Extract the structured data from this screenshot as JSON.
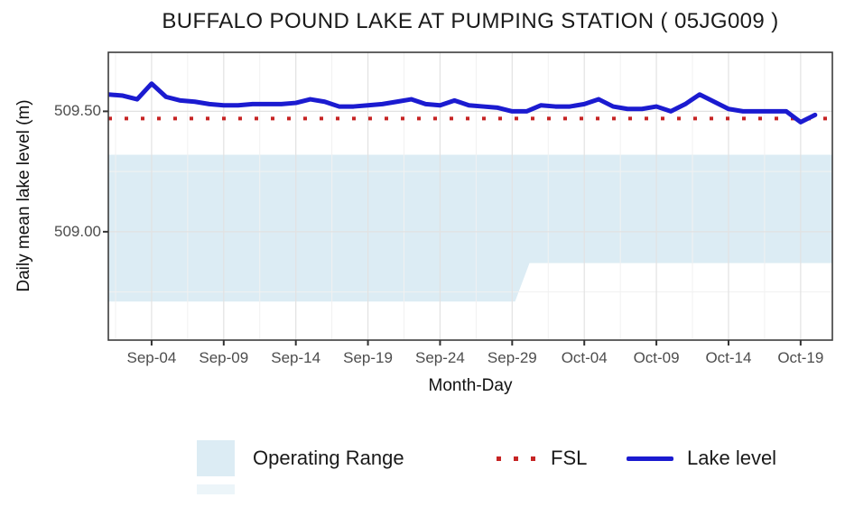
{
  "title": "BUFFALO POUND LAKE AT PUMPING STATION ( 05JG009 )",
  "colors": {
    "lake_level": "#1b1bd0",
    "fsl": "#c62424",
    "operating_range": "#dcecf4",
    "grid_major": "#e2e2e2",
    "grid_minor": "#f1f1f1",
    "panel_border": "#3c3c3c",
    "tick_mark": "#333333"
  },
  "legend": {
    "operating_range_label": "Operating Range",
    "fsl_label": "FSL",
    "lake_level_label": "Lake level"
  },
  "chart_data": {
    "type": "line",
    "title": "BUFFALO POUND LAKE AT PUMPING STATION ( 05JG009 )",
    "xlabel": "Month-Day",
    "ylabel": "Daily mean lake level (m)",
    "grid": true,
    "legend_position": "bottom",
    "xlim_days": [
      0,
      50.2
    ],
    "ylim": [
      508.55,
      509.745
    ],
    "x_tick_labels": [
      "Sep-04",
      "Sep-09",
      "Sep-14",
      "Sep-19",
      "Sep-24",
      "Sep-29",
      "Oct-04",
      "Oct-09",
      "Oct-14",
      "Oct-19"
    ],
    "x_tick_days": [
      3,
      8,
      13,
      18,
      23,
      28,
      33,
      38,
      43,
      48
    ],
    "x_minor_days": [
      0.5,
      5.5,
      10.5,
      15.5,
      20.5,
      25.5,
      30.5,
      35.5,
      40.5,
      45.5
    ],
    "y_ticks": [
      {
        "value": 509.5,
        "label": "509.50"
      },
      {
        "value": 509.0,
        "label": "509.00"
      }
    ],
    "y_minor": [
      509.25,
      508.75
    ],
    "fsl_value": 509.47,
    "operating_range": {
      "top": 509.32,
      "bottom_profile": [
        {
          "day": 0,
          "level": 508.71
        },
        {
          "day": 28.2,
          "level": 508.71
        },
        {
          "day": 29.2,
          "level": 508.87
        },
        {
          "day": 50.2,
          "level": 508.87
        }
      ]
    },
    "series": [
      {
        "name": "Lake level",
        "dates": [
          "Sep-01",
          "Sep-02",
          "Sep-03",
          "Sep-04",
          "Sep-05",
          "Sep-06",
          "Sep-07",
          "Sep-08",
          "Sep-09",
          "Sep-10",
          "Sep-11",
          "Sep-12",
          "Sep-13",
          "Sep-14",
          "Sep-15",
          "Sep-16",
          "Sep-17",
          "Sep-18",
          "Sep-19",
          "Sep-20",
          "Sep-21",
          "Sep-22",
          "Sep-23",
          "Sep-24",
          "Sep-25",
          "Sep-26",
          "Sep-27",
          "Sep-28",
          "Sep-29",
          "Sep-30",
          "Oct-01",
          "Oct-02",
          "Oct-03",
          "Oct-04",
          "Oct-05",
          "Oct-06",
          "Oct-07",
          "Oct-08",
          "Oct-09",
          "Oct-10",
          "Oct-11",
          "Oct-12",
          "Oct-13",
          "Oct-14",
          "Oct-15",
          "Oct-16",
          "Oct-17",
          "Oct-18",
          "Oct-19",
          "Oct-20"
        ],
        "values": [
          509.57,
          509.565,
          509.55,
          509.615,
          509.56,
          509.545,
          509.54,
          509.53,
          509.525,
          509.525,
          509.53,
          509.53,
          509.53,
          509.535,
          509.55,
          509.54,
          509.52,
          509.52,
          509.525,
          509.53,
          509.54,
          509.55,
          509.53,
          509.525,
          509.545,
          509.525,
          509.52,
          509.515,
          509.5,
          509.5,
          509.525,
          509.52,
          509.52,
          509.53,
          509.55,
          509.52,
          509.51,
          509.51,
          509.52,
          509.5,
          509.53,
          509.57,
          509.54,
          509.51,
          509.5,
          509.5,
          509.5,
          509.5,
          509.455,
          509.485
        ]
      }
    ]
  }
}
